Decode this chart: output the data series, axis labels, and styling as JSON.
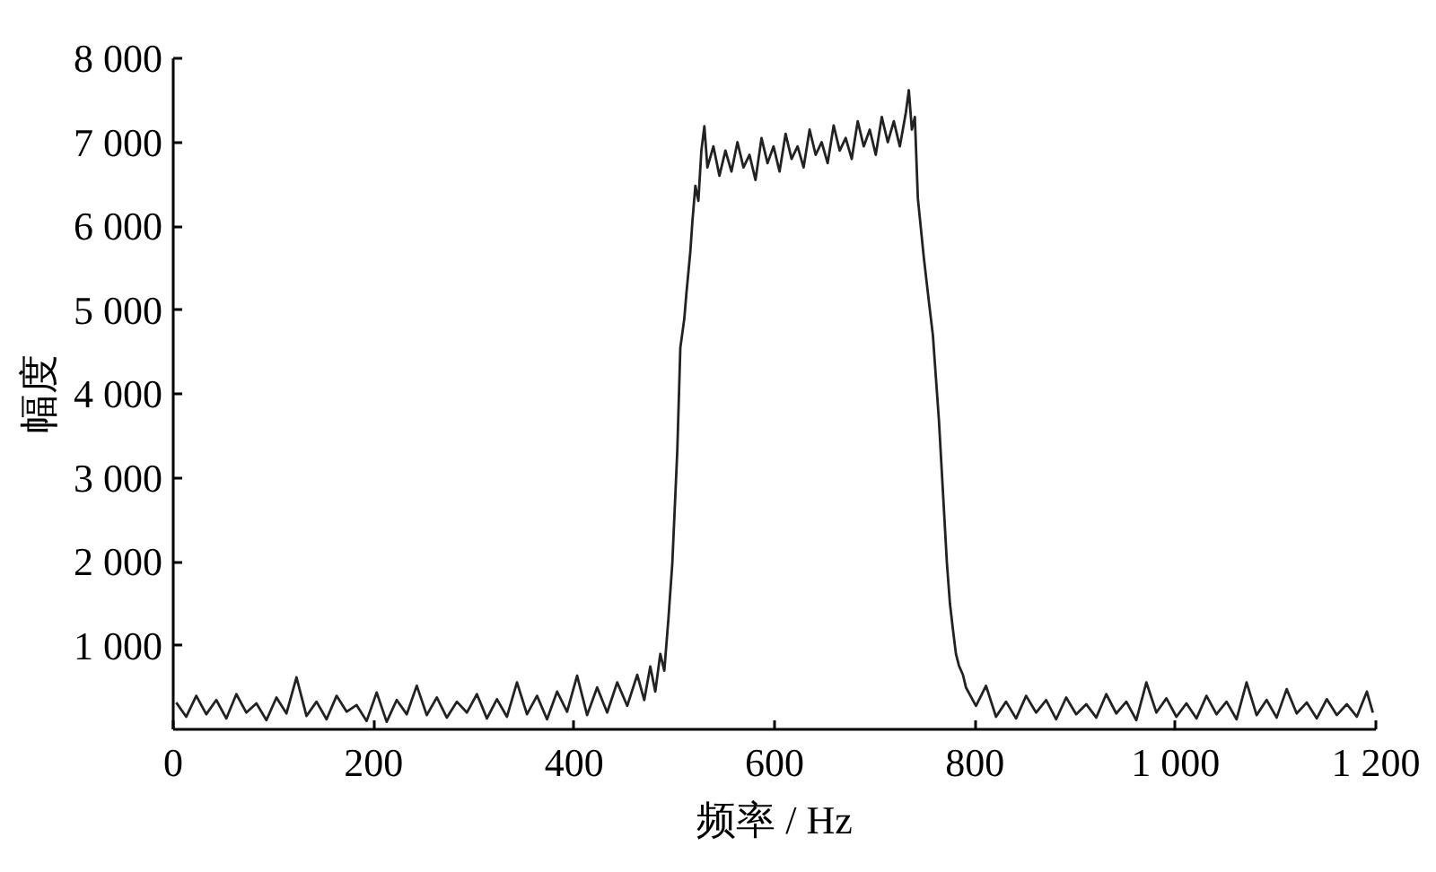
{
  "chart_data": {
    "type": "line",
    "xlabel": "频率 / Hz",
    "ylabel": "幅度",
    "xlim": [
      0,
      1200
    ],
    "ylim": [
      0,
      8000
    ],
    "xticks": [
      0,
      200,
      400,
      600,
      800,
      {
        "value": 1000,
        "label": "1 000"
      },
      {
        "value": 1200,
        "label": "1 200"
      }
    ],
    "yticks": [
      {
        "value": 1000,
        "label": "1 000"
      },
      {
        "value": 2000,
        "label": "2 000"
      },
      {
        "value": 3000,
        "label": "3 000"
      },
      {
        "value": 4000,
        "label": "4 000"
      },
      {
        "value": 5000,
        "label": "5 000"
      },
      {
        "value": 6000,
        "label": "6 000"
      },
      {
        "value": 7000,
        "label": "7 000"
      },
      {
        "value": 8000,
        "label": "8 000"
      }
    ],
    "x": [
      3,
      13,
      23,
      33,
      43,
      53,
      63,
      73,
      83,
      93,
      103,
      113,
      123,
      133,
      143,
      153,
      163,
      173,
      183,
      193,
      203,
      213,
      223,
      233,
      243,
      253,
      263,
      273,
      283,
      293,
      303,
      313,
      323,
      333,
      343,
      353,
      363,
      373,
      383,
      393,
      403,
      413,
      423,
      433,
      443,
      453,
      463,
      470,
      476,
      481,
      486,
      490,
      494,
      498,
      503,
      506,
      510,
      512,
      516,
      518,
      521,
      524,
      527,
      530,
      533,
      539,
      545,
      551,
      557,
      563,
      569,
      575,
      581,
      587,
      593,
      599,
      605,
      611,
      617,
      623,
      629,
      635,
      641,
      647,
      653,
      659,
      665,
      671,
      677,
      683,
      689,
      695,
      701,
      707,
      713,
      719,
      725,
      731,
      734,
      737,
      740,
      743,
      749,
      754,
      758,
      764,
      767,
      772,
      775,
      778,
      781,
      784,
      788,
      791,
      795,
      801,
      811,
      821,
      831,
      841,
      851,
      861,
      871,
      881,
      891,
      901,
      911,
      921,
      931,
      941,
      951,
      961,
      971,
      981,
      991,
      1001,
      1011,
      1021,
      1031,
      1041,
      1051,
      1061,
      1071,
      1081,
      1091,
      1101,
      1111,
      1121,
      1131,
      1141,
      1151,
      1161,
      1171,
      1181,
      1191,
      1197
    ],
    "series": [
      {
        "color": "#222222",
        "values": [
          320,
          150,
          400,
          180,
          350,
          130,
          420,
          200,
          310,
          110,
          380,
          190,
          620,
          160,
          330,
          120,
          400,
          210,
          290,
          100,
          440,
          90,
          350,
          180,
          520,
          170,
          380,
          140,
          330,
          200,
          420,
          130,
          360,
          150,
          560,
          180,
          400,
          120,
          450,
          210,
          640,
          170,
          500,
          200,
          560,
          280,
          650,
          350,
          750,
          450,
          900,
          700,
          1300,
          1980,
          3330,
          4550,
          4900,
          5190,
          5700,
          6050,
          6480,
          6300,
          6900,
          7190,
          6700,
          6950,
          6600,
          6900,
          6650,
          7000,
          6700,
          6850,
          6550,
          7050,
          6750,
          6950,
          6650,
          7100,
          6800,
          6950,
          6700,
          7150,
          6850,
          7000,
          6750,
          7200,
          6900,
          7050,
          6800,
          7250,
          6950,
          7150,
          6850,
          7300,
          7000,
          7250,
          6950,
          7350,
          7620,
          7150,
          7300,
          6330,
          5620,
          5100,
          4700,
          3690,
          3050,
          1980,
          1500,
          1190,
          900,
          760,
          650,
          500,
          410,
          280,
          520,
          150,
          330,
          130,
          400,
          200,
          350,
          120,
          380,
          180,
          300,
          140,
          420,
          190,
          330,
          110,
          560,
          200,
          370,
          150,
          310,
          130,
          400,
          180,
          330,
          120,
          560,
          170,
          350,
          140,
          480,
          190,
          320,
          130,
          360,
          170,
          300,
          150,
          450,
          200
        ]
      }
    ]
  }
}
